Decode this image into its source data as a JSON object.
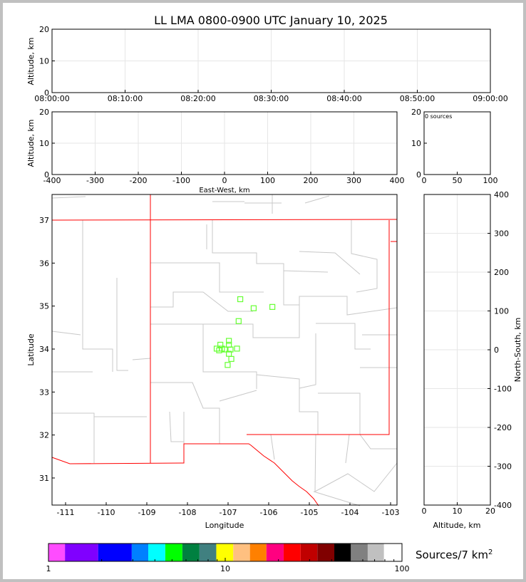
{
  "title": "LL LMA 0800-0900 UTC January 10, 2025",
  "colors": {
    "grid": "#e6e6e6",
    "county": "#c8c8c8",
    "state": "#ff0000",
    "source": "#66ff33"
  },
  "chart_data": [
    {
      "type": "scatter",
      "panel": "altitude-time",
      "ylabel": "Altitude, km",
      "ylim": [
        0,
        20
      ],
      "yticks": [
        "0",
        "10",
        "20"
      ],
      "xticks": [
        "08:00:00",
        "08:10:00",
        "08:20:00",
        "08:30:00",
        "08:40:00",
        "08:50:00",
        "09:00:00"
      ],
      "grid": true,
      "points": []
    },
    {
      "type": "scatter",
      "panel": "altitude-eastwest",
      "ylabel": "Altitude, km",
      "xlabel": "East-West, km",
      "xlim": [
        -400,
        400
      ],
      "ylim": [
        0,
        20
      ],
      "xticks": [
        "-400",
        "-300",
        "-200",
        "-100",
        "0",
        "100",
        "200",
        "300",
        "400"
      ],
      "yticks": [
        "0",
        "10",
        "20"
      ],
      "grid": true,
      "points": []
    },
    {
      "type": "bar",
      "panel": "histogram",
      "annotation": "0 sources",
      "xlim": [
        0,
        100
      ],
      "ylim": [
        0,
        20
      ],
      "xticks": [
        "0",
        "50",
        "100"
      ],
      "yticks": [
        "0",
        "10",
        "20"
      ]
    },
    {
      "type": "scatter",
      "panel": "plan-view-map",
      "xlabel": "Longitude",
      "ylabel": "Latitude",
      "xlim": [
        -111.5,
        -102.95
      ],
      "ylim": [
        30.4,
        37.6
      ],
      "xticks": [
        "-111",
        "-110",
        "-109",
        "-108",
        "-107",
        "-106",
        "-105",
        "-104",
        "-103"
      ],
      "yticks": [
        "31",
        "32",
        "33",
        "34",
        "35",
        "36",
        "37"
      ],
      "marker": "open-square",
      "points": [
        [
          -106.7,
          35.16
        ],
        [
          -106.37,
          34.95
        ],
        [
          -105.91,
          34.98
        ],
        [
          -106.74,
          34.65
        ],
        [
          -106.98,
          34.19
        ],
        [
          -107.19,
          34.1
        ],
        [
          -106.98,
          34.1
        ],
        [
          -107.28,
          34.01
        ],
        [
          -107.15,
          34.01
        ],
        [
          -107.08,
          33.99
        ],
        [
          -106.94,
          33.99
        ],
        [
          -106.78,
          34.01
        ],
        [
          -107.22,
          33.97
        ],
        [
          -106.98,
          33.89
        ],
        [
          -106.92,
          33.77
        ],
        [
          -107.01,
          33.63
        ]
      ]
    },
    {
      "type": "scatter",
      "panel": "northsouth-altitude",
      "xlabel": "Altitude, km",
      "ylabel": "North-South, km",
      "xlim": [
        0,
        20
      ],
      "ylim": [
        -400,
        400
      ],
      "xticks": [
        "0",
        "10",
        "20"
      ],
      "yticks": [
        "400",
        "300",
        "200",
        "100",
        "0",
        "-100",
        "-200",
        "-300",
        "-400"
      ],
      "grid": true,
      "points": []
    }
  ],
  "colorbar": {
    "label": "Sources/7 km",
    "label_sup": "2",
    "scale": "log",
    "range": [
      1,
      100
    ],
    "ticks": [
      "1",
      "10",
      "100"
    ],
    "boundaries": [
      1,
      1.24,
      1.91,
      2.96,
      3.67,
      4.58,
      5.72,
      7.15,
      8.9,
      11.1,
      13.8,
      17.1,
      21.4,
      26.7,
      33.2,
      41.4,
      51.4,
      64,
      79.1,
      100
    ],
    "colors": [
      "#ff4cff",
      "#8000ff",
      "#0000ff",
      "#0080ff",
      "#00ffff",
      "#00ff00",
      "#008040",
      "#408080",
      "#ffff00",
      "#ffc080",
      "#ff8000",
      "#ff0080",
      "#ff0000",
      "#c00000",
      "#800000",
      "#000000",
      "#808080",
      "#c0c0c0",
      "#ffffff"
    ]
  }
}
